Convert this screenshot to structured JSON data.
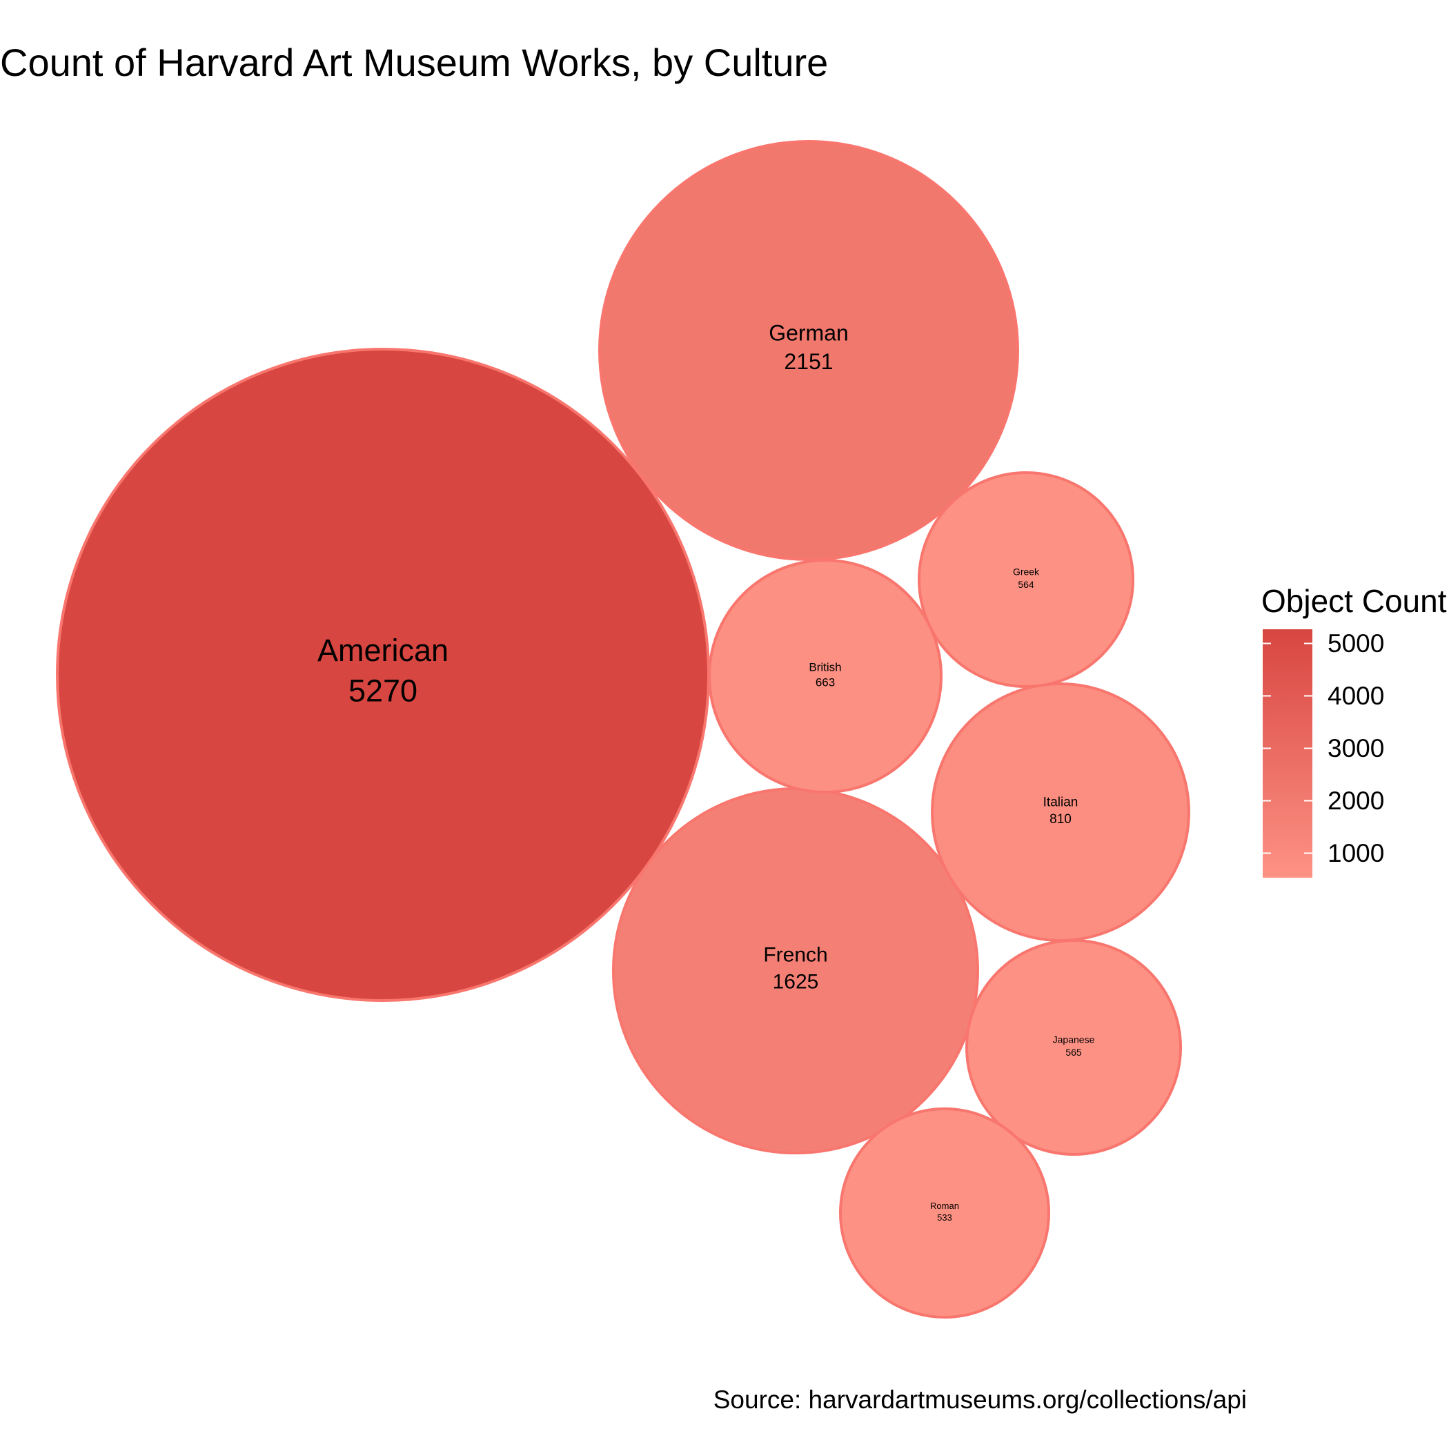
{
  "chart_data": {
    "type": "bubble",
    "title": "Count of Harvard Art Museum Works, by Culture",
    "caption": "Source: harvardartmuseums.org/collections/api",
    "color_legend": {
      "title": "Object Count",
      "ticks": [
        5000,
        4000,
        3000,
        2000,
        1000
      ],
      "range": [
        533,
        5270
      ],
      "low_color": "#FD9284",
      "high_color": "#D84641"
    },
    "outline_color": "#F8766D",
    "bubbles": [
      {
        "label": "American",
        "value": 5270
      },
      {
        "label": "German",
        "value": 2151
      },
      {
        "label": "French",
        "value": 1625
      },
      {
        "label": "Italian",
        "value": 810
      },
      {
        "label": "British",
        "value": 663
      },
      {
        "label": "Japanese",
        "value": 565
      },
      {
        "label": "Greek",
        "value": 564
      },
      {
        "label": "Roman",
        "value": 533
      }
    ]
  }
}
